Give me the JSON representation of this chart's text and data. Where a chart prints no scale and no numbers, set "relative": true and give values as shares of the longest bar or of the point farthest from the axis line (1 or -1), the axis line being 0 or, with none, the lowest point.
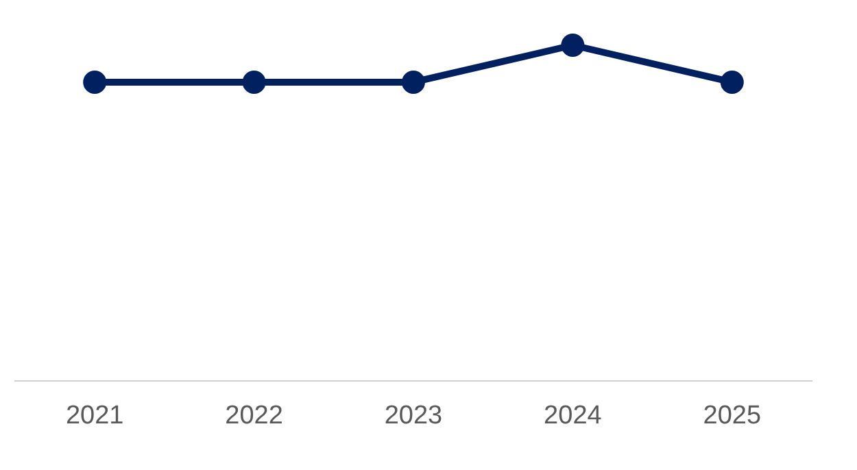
{
  "chart_data": {
    "type": "line",
    "categories": [
      "2021",
      "2022",
      "2023",
      "2024",
      "2025"
    ],
    "series": [
      {
        "color": "#002060",
        "values": [
          0.89,
          0.89,
          0.89,
          1,
          0.89
        ]
      }
    ],
    "relative": true,
    "marker": "circle",
    "grid": false,
    "legend": false
  }
}
